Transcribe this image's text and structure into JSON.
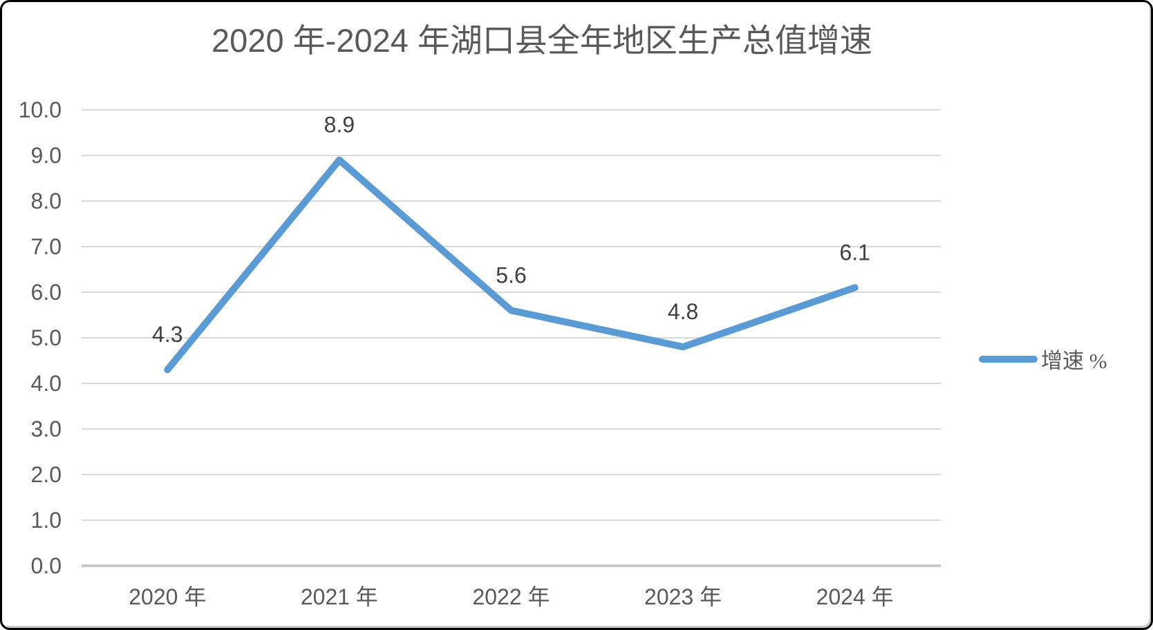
{
  "chart_data": {
    "type": "line",
    "title": "2020 年-2024 年湖口县全年地区生产总值增速",
    "categories": [
      "2020 年",
      "2021 年",
      "2022 年",
      "2023 年",
      "2024 年"
    ],
    "series": [
      {
        "name": "增速 %",
        "values": [
          4.3,
          8.9,
          5.6,
          4.8,
          6.1
        ]
      }
    ],
    "data_labels": [
      "4.3",
      "8.9",
      "5.6",
      "4.8",
      "6.1"
    ],
    "xlabel": "",
    "ylabel": "",
    "ylim": [
      0,
      10
    ],
    "ytick_step": 1.0,
    "ytick_labels": [
      "0.0",
      "1.0",
      "2.0",
      "3.0",
      "4.0",
      "5.0",
      "6.0",
      "7.0",
      "8.0",
      "9.0",
      "10.0"
    ],
    "grid": "horizontal",
    "legend": {
      "position": "right",
      "label": "增速 %"
    },
    "colors": {
      "line": "#5B9BD5",
      "gridline": "#D9D9D9",
      "axis_line": "#C9C9C9",
      "tick_label": "#595959",
      "data_label": "#404040",
      "title": "#595959",
      "background": "#FFFFFF",
      "frame_border": "#000000"
    }
  }
}
